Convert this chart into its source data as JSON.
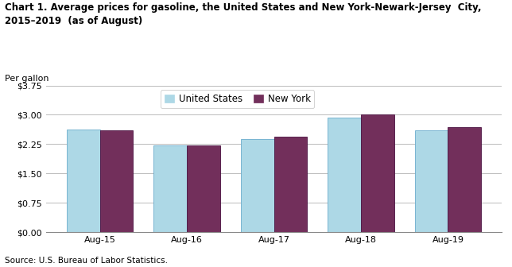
{
  "title": "Chart 1. Average prices for gasoline, the United States and New York-Newark-Jersey  City,\n2015–2019  (as of August)",
  "ylabel_top": "Per gallon",
  "categories": [
    "Aug-15",
    "Aug-16",
    "Aug-17",
    "Aug-18",
    "Aug-19"
  ],
  "us_values": [
    2.63,
    2.219,
    2.376,
    2.93,
    2.598
  ],
  "ny_values": [
    2.594,
    2.218,
    2.443,
    3.002,
    2.68
  ],
  "us_color": "#add8e6",
  "ny_color": "#722F5B",
  "us_label": "United States",
  "ny_label": "New York",
  "ylim": [
    0,
    3.75
  ],
  "yticks": [
    0.0,
    0.75,
    1.5,
    2.25,
    3.0,
    3.75
  ],
  "ytick_labels": [
    "$0.00",
    "$0.75",
    "$1.50",
    "$2.25",
    "$3.00",
    "$3.75"
  ],
  "source": "Source: U.S. Bureau of Labor Statistics.",
  "bar_width": 0.38,
  "background_color": "#ffffff",
  "grid_color": "#bbbbbb",
  "title_fontsize": 8.5,
  "label_fontsize": 8,
  "tick_fontsize": 8,
  "legend_fontsize": 8.5
}
